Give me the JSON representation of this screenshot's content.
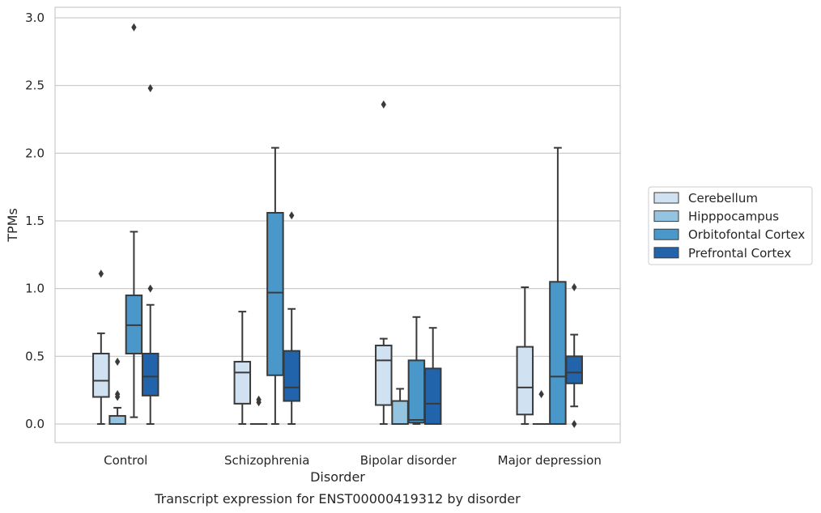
{
  "chart_data": {
    "type": "boxplot",
    "title": "Transcript expression for ENST00000419312 by disorder",
    "xlabel": "Disorder",
    "ylabel": "TPMs",
    "ylim": [
      -0.14,
      3.07
    ],
    "yticks": [
      "0.0",
      "0.5",
      "1.0",
      "1.5",
      "2.0",
      "2.5",
      "3.0"
    ],
    "categories": [
      "Control",
      "Schizophrenia",
      "Bipolar disorder",
      "Major depression"
    ],
    "grid": true,
    "legend_position": "right",
    "series": [
      {
        "name": "Cerebellum",
        "color": "#d0e1f2",
        "boxes": [
          {
            "whislo": 0.0,
            "q1": 0.2,
            "med": 0.32,
            "q3": 0.52,
            "whishi": 0.67,
            "fliers": [
              1.11
            ]
          },
          {
            "whislo": 0.0,
            "q1": 0.15,
            "med": 0.38,
            "q3": 0.46,
            "whishi": 0.83,
            "fliers": []
          },
          {
            "whislo": 0.0,
            "q1": 0.14,
            "med": 0.47,
            "q3": 0.58,
            "whishi": 0.63,
            "fliers": [
              2.36
            ]
          },
          {
            "whislo": 0.0,
            "q1": 0.07,
            "med": 0.27,
            "q3": 0.57,
            "whishi": 1.01,
            "fliers": []
          }
        ]
      },
      {
        "name": "Hipppocampus",
        "color": "#94c4df",
        "boxes": [
          {
            "whislo": 0.0,
            "q1": 0.0,
            "med": 0.0,
            "q3": 0.06,
            "whishi": 0.12,
            "fliers": [
              0.46,
              0.22,
              0.2
            ]
          },
          {
            "whislo": 0.0,
            "q1": 0.0,
            "med": 0.0,
            "q3": 0.0,
            "whishi": 0.0,
            "fliers": [
              0.18,
              0.16
            ]
          },
          {
            "whislo": 0.0,
            "q1": 0.0,
            "med": 0.0,
            "q3": 0.17,
            "whishi": 0.26,
            "fliers": []
          },
          {
            "whislo": 0.0,
            "q1": 0.0,
            "med": 0.0,
            "q3": 0.0,
            "whishi": 0.0,
            "fliers": [
              0.22
            ]
          }
        ]
      },
      {
        "name": "Orbitofontal Cortex",
        "color": "#4a98c9",
        "boxes": [
          {
            "whislo": 0.05,
            "q1": 0.52,
            "med": 0.73,
            "q3": 0.95,
            "whishi": 1.42,
            "fliers": [
              2.93
            ]
          },
          {
            "whislo": 0.0,
            "q1": 0.36,
            "med": 0.97,
            "q3": 1.56,
            "whishi": 2.04,
            "fliers": []
          },
          {
            "whislo": 0.0,
            "q1": 0.01,
            "med": 0.03,
            "q3": 0.47,
            "whishi": 0.79,
            "fliers": []
          },
          {
            "whislo": 0.0,
            "q1": 0.0,
            "med": 0.35,
            "q3": 1.05,
            "whishi": 2.04,
            "fliers": []
          }
        ]
      },
      {
        "name": "Prefrontal Cortex",
        "color": "#2164ab",
        "boxes": [
          {
            "whislo": 0.0,
            "q1": 0.21,
            "med": 0.35,
            "q3": 0.52,
            "whishi": 0.88,
            "fliers": [
              2.48,
              1.0
            ]
          },
          {
            "whislo": 0.0,
            "q1": 0.17,
            "med": 0.27,
            "q3": 0.54,
            "whishi": 0.85,
            "fliers": [
              1.54
            ]
          },
          {
            "whislo": 0.0,
            "q1": 0.0,
            "med": 0.15,
            "q3": 0.41,
            "whishi": 0.71,
            "fliers": []
          },
          {
            "whislo": 0.13,
            "q1": 0.3,
            "med": 0.38,
            "q3": 0.5,
            "whishi": 0.66,
            "fliers": [
              1.01,
              0.0
            ]
          }
        ]
      }
    ]
  }
}
